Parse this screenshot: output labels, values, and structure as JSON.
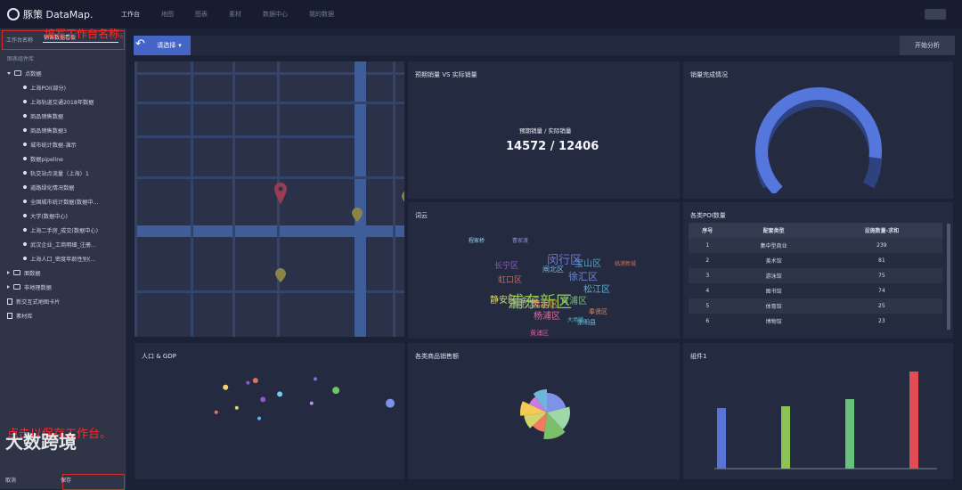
{
  "app": {
    "name": "豚策 DataMap."
  },
  "nav": [
    "工作台",
    "地图",
    "图表",
    "素材",
    "数据中心",
    "我的数据"
  ],
  "sidebar": {
    "workspace_name_label": "工作台名称",
    "workspace_name_value": "销售数据看板",
    "component_library": "图表组件库",
    "groups": [
      {
        "label": "点数据",
        "expanded": true,
        "items": [
          "上海POI(部分)",
          "上海轨道交通2018年数据",
          "商品销售数据",
          "商品销售数据3",
          "城市统计数据-演示",
          "数据pipeline",
          "轨交站点流量（上海）1",
          "道路绿化情况数据",
          "全国城市统计数据(数据中...",
          "大学(数据中心)",
          "上海二手房_成交(数据中心)",
          "武汉企业_工商明细_注册...",
          "上海人口_密度年龄性别(..."
        ]
      },
      {
        "label": "面数据",
        "expanded": false,
        "items": []
      },
      {
        "label": "非地理数据",
        "expanded": false,
        "items": []
      }
    ],
    "extra_items": [
      "新交互式地图卡片",
      "素材库"
    ],
    "cancel_label": "取消",
    "save_label": "保存"
  },
  "annotations": {
    "fill_name": "填写工作台名称。",
    "save_hint": "点击以保存工作台。"
  },
  "watermark": "大数跨境",
  "toolbar": {
    "select_label": "请选择",
    "analyze_label": "开始分析"
  },
  "panels": {
    "expected_vs_actual": {
      "title": "预期销量 VS 实际销量",
      "kpi_label": "预期销量 / 实际销量",
      "kpi_value": "14572 / 12406"
    },
    "completion": {
      "title": "销量完成情况",
      "progress_fraction": 0.86
    },
    "wordcloud": {
      "title": "词云"
    },
    "poi_table": {
      "title": "各类POI数量",
      "headers": [
        "序号",
        "配套类型",
        "设施数量-求和"
      ],
      "rows": [
        [
          "1",
          "集中型商业",
          "239"
        ],
        [
          "2",
          "美术馆",
          "81"
        ],
        [
          "3",
          "游泳馆",
          "75"
        ],
        [
          "4",
          "图书馆",
          "74"
        ],
        [
          "5",
          "体育馆",
          "25"
        ],
        [
          "6",
          "博物馆",
          "23"
        ]
      ]
    },
    "population_gdp": {
      "title": "人口 & GDP"
    },
    "category_sales": {
      "title": "各类商品销售额"
    },
    "component1": {
      "title": "组件1"
    }
  },
  "wordcloud_words": [
    {
      "text": "浦东新区",
      "color": "#8dc94e",
      "size": 18
    },
    {
      "text": "闵行区",
      "color": "#6b74d8",
      "size": 13
    },
    {
      "text": "长宁区",
      "color": "#8f59c7",
      "size": 9
    },
    {
      "text": "宝山区",
      "color": "#5ba3c9",
      "size": 10
    },
    {
      "text": "徐汇区",
      "color": "#6e87d8",
      "size": 11
    },
    {
      "text": "松江区",
      "color": "#5fb1d0",
      "size": 10
    },
    {
      "text": "虹口区",
      "color": "#c86a59",
      "size": 9
    },
    {
      "text": "静安区",
      "color": "#d5d76d",
      "size": 10
    },
    {
      "text": "嘉定区",
      "color": "#e17b58",
      "size": 10
    },
    {
      "text": "普陀区",
      "color": "#999999",
      "size": 10
    },
    {
      "text": "青浦区",
      "color": "#75c16d",
      "size": 10
    },
    {
      "text": "杨浦区",
      "color": "#e06b9d",
      "size": 10
    },
    {
      "text": "闸北区",
      "color": "#7cbadf",
      "size": 8
    },
    {
      "text": "金山区",
      "color": "#d1cf5b",
      "size": 7
    },
    {
      "text": "奉贤区",
      "color": "#dc8f5e",
      "size": 7
    },
    {
      "text": "黄浦区",
      "color": "#d15f9a",
      "size": 7
    },
    {
      "text": "崇明县",
      "color": "#7dc0e7",
      "size": 7
    },
    {
      "text": "大场镇",
      "color": "#4db8c5",
      "size": 6
    },
    {
      "text": "程家桥",
      "color": "#9ad5f5",
      "size": 6
    },
    {
      "text": "曹家渡",
      "color": "#9182d1",
      "size": 6
    },
    {
      "text": "临港新城",
      "color": "#d96a4e",
      "size": 6
    }
  ],
  "chart_data": [
    {
      "type": "scatter",
      "title": "人口 & GDP",
      "series": [
        {
          "points": [
            {
              "x": 2.2,
              "y": 8.5,
              "size": 3,
              "color": "#f0d36c"
            },
            {
              "x": 3.8,
              "y": 9.4,
              "size": 3,
              "color": "#e0705c"
            },
            {
              "x": 4.2,
              "y": 6.9,
              "size": 3,
              "color": "#8f59c7"
            },
            {
              "x": 5.1,
              "y": 7.6,
              "size": 3,
              "color": "#77c8f1"
            },
            {
              "x": 7.0,
              "y": 9.6,
              "size": 2,
              "color": "#6b74d8"
            },
            {
              "x": 8.1,
              "y": 8.1,
              "size": 4,
              "color": "#75c16d"
            },
            {
              "x": 6.8,
              "y": 6.4,
              "size": 2,
              "color": "#c28de8"
            },
            {
              "x": 2.8,
              "y": 5.8,
              "size": 2,
              "color": "#d5d76d"
            },
            {
              "x": 1.7,
              "y": 5.2,
              "size": 2,
              "color": "#ef6d6d"
            },
            {
              "x": 4.0,
              "y": 4.4,
              "size": 2,
              "color": "#5cb2f2"
            },
            {
              "x": 11.0,
              "y": 6.4,
              "size": 5,
              "color": "#7e92e8"
            },
            {
              "x": 3.4,
              "y": 9.1,
              "size": 2,
              "color": "#8f59c7"
            }
          ]
        }
      ]
    },
    {
      "type": "pie",
      "title": "各类商品销售额",
      "slices": [
        {
          "value": 21,
          "color": "#7e92e8"
        },
        {
          "value": 17,
          "color": "#9fd7a8"
        },
        {
          "value": 14,
          "color": "#7bbf6a"
        },
        {
          "value": 11,
          "color": "#f07c60"
        },
        {
          "value": 10,
          "color": "#d4d46d"
        },
        {
          "value": 9,
          "color": "#f4c954"
        },
        {
          "value": 8,
          "color": "#c97ce0"
        },
        {
          "value": 10,
          "color": "#6cb7d9"
        }
      ]
    },
    {
      "type": "bar",
      "title": "组件1",
      "values": [
        68,
        70,
        78,
        109
      ],
      "colors": [
        "#5a74d6",
        "#8cc357",
        "#67c27b",
        "#e34d52"
      ]
    }
  ]
}
